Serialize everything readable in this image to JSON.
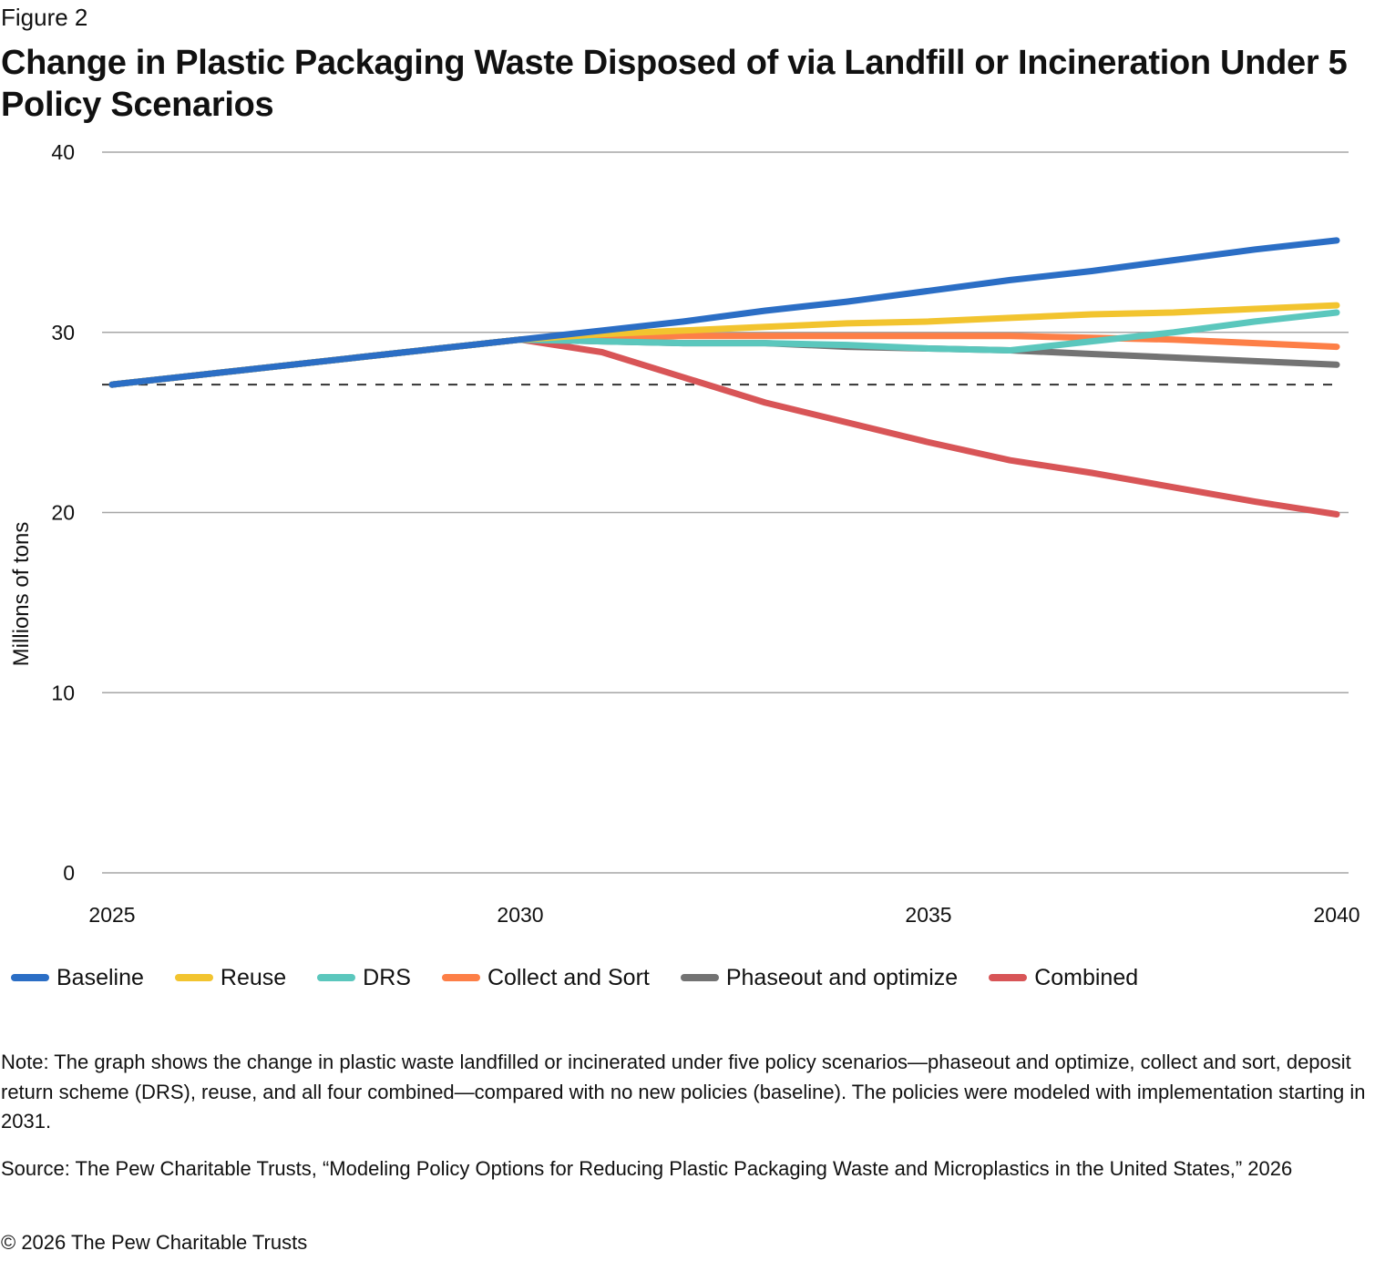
{
  "figure_label": "Figure 2",
  "title": "Change in Plastic Packaging Waste Disposed of via Landfill or Incineration Under 5 Policy Scenarios",
  "note": "Note: The graph shows the change in plastic waste landfilled or incinerated under five policy scenarios—phaseout and optimize, collect and sort, deposit return scheme (DRS), reuse, and all four combined—compared with no new policies (baseline). The policies were modeled with implementation starting in 2031.",
  "source": "Source: The Pew Charitable Trusts, “Modeling Policy Options for Reducing Plastic Packaging Waste and Microplastics in the United States,” 2026",
  "copyright": "© 2026 The Pew Charitable Trusts",
  "chart_data": {
    "type": "line",
    "title": "Change in Plastic Packaging Waste Disposed of via Landfill or Incineration Under 5 Policy Scenarios",
    "xlabel": "",
    "ylabel": "Millions of tons",
    "x": [
      2025,
      2026,
      2027,
      2028,
      2029,
      2030,
      2031,
      2032,
      2033,
      2034,
      2035,
      2036,
      2037,
      2038,
      2039,
      2040
    ],
    "xticks": [
      "2025",
      "2030",
      "2035",
      "2040"
    ],
    "xlim": [
      2025,
      2040
    ],
    "ylim": [
      0,
      40
    ],
    "yticks": [
      "0",
      "10",
      "20",
      "30",
      "40"
    ],
    "grid": true,
    "legend_position": "bottom",
    "reference_line": {
      "value": 27.1,
      "style": "dashed",
      "color": "#333333"
    },
    "series": [
      {
        "name": "Baseline",
        "color": "#2b6ec5",
        "values": [
          27.1,
          27.6,
          28.1,
          28.6,
          29.1,
          29.6,
          30.1,
          30.6,
          31.2,
          31.7,
          32.3,
          32.9,
          33.4,
          34.0,
          34.6,
          35.1
        ]
      },
      {
        "name": "Reuse",
        "color": "#f2c42f",
        "values": [
          27.1,
          27.6,
          28.1,
          28.6,
          29.1,
          29.6,
          29.9,
          30.1,
          30.3,
          30.5,
          30.6,
          30.8,
          31.0,
          31.1,
          31.3,
          31.5
        ]
      },
      {
        "name": "DRS",
        "color": "#5bc7bd",
        "values": [
          27.1,
          27.6,
          28.1,
          28.6,
          29.1,
          29.6,
          29.5,
          29.4,
          29.4,
          29.3,
          29.1,
          29.0,
          29.5,
          30.0,
          30.6,
          31.1
        ]
      },
      {
        "name": "Collect and Sort",
        "color": "#fd7f47",
        "values": [
          27.1,
          27.6,
          28.1,
          28.6,
          29.1,
          29.6,
          29.7,
          29.8,
          29.8,
          29.8,
          29.8,
          29.8,
          29.7,
          29.6,
          29.4,
          29.2
        ]
      },
      {
        "name": "Phaseout and optimize",
        "color": "#737373",
        "values": [
          27.1,
          27.6,
          28.1,
          28.6,
          29.1,
          29.6,
          29.5,
          29.4,
          29.4,
          29.2,
          29.1,
          29.0,
          28.8,
          28.6,
          28.4,
          28.2
        ]
      },
      {
        "name": "Combined",
        "color": "#d85557",
        "values": [
          27.1,
          27.6,
          28.1,
          28.6,
          29.1,
          29.6,
          28.9,
          27.5,
          26.1,
          25.0,
          23.9,
          22.9,
          22.2,
          21.4,
          20.6,
          19.9
        ]
      }
    ]
  }
}
